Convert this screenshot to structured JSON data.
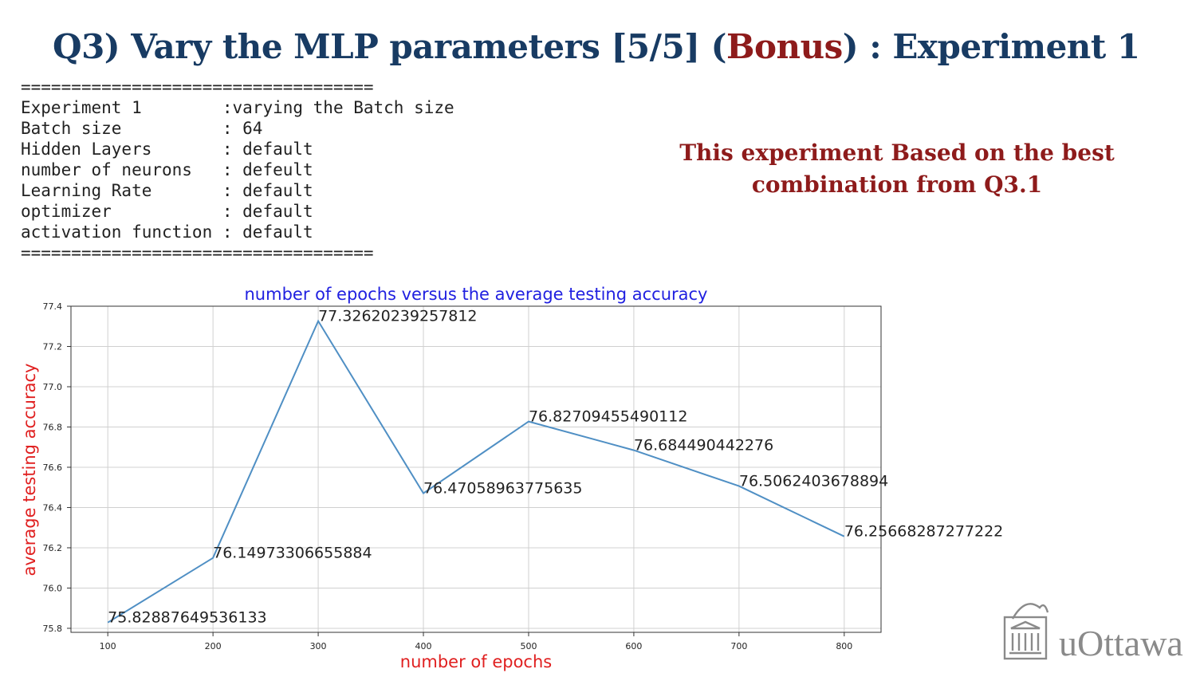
{
  "slide": {
    "title_prefix": "Q3) Vary the MLP parameters [5/5]  (",
    "title_bonus": "Bonus",
    "title_suffix": ") : Experiment 1",
    "note": "This experiment Based on the best combination from Q3.1",
    "logo_text": "uOttawa"
  },
  "console": {
    "separator": "===================================",
    "rows": [
      {
        "key": "Experiment 1        ",
        "value": ":varying the Batch size"
      },
      {
        "key": "Batch size          ",
        "value": ": 64"
      },
      {
        "key": "Hidden Layers       ",
        "value": ": default"
      },
      {
        "key": "number of neurons   ",
        "value": ": defeult"
      },
      {
        "key": "Learning Rate       ",
        "value": ": default"
      },
      {
        "key": "optimizer           ",
        "value": ": default"
      },
      {
        "key": "activation function ",
        "value": ": default"
      }
    ]
  },
  "colors": {
    "title": "#183b63",
    "accent_red": "#8e1b1b",
    "chart_title": "#1f1fe0",
    "axis_label": "#e02020",
    "line": "#4f8fc4",
    "grid": "#d0d0d0"
  },
  "chart_data": {
    "type": "line",
    "title": "number of epochs versus the average testing accuracy",
    "xlabel": "number of epochs",
    "ylabel": "average testing accuracy",
    "x": [
      100,
      200,
      300,
      400,
      500,
      600,
      700,
      800
    ],
    "y": [
      75.82887649536133,
      76.14973306655884,
      77.32620239257812,
      76.47058963775635,
      76.82709455490112,
      76.684490442276,
      76.5062403678894,
      76.25668287277222
    ],
    "point_labels": [
      "75.82887649536133",
      "76.14973306655884",
      "77.32620239257812",
      "76.47058963775635",
      "76.82709455490112",
      "76.684490442276",
      "76.5062403678894",
      "76.25668287277222"
    ],
    "xticks": [
      100,
      200,
      300,
      400,
      500,
      600,
      700,
      800
    ],
    "yticks": [
      "75.8",
      "76.0",
      "76.2",
      "76.4",
      "76.6",
      "76.8",
      "77.0",
      "77.2",
      "77.4"
    ],
    "xlim": [
      65,
      835
    ],
    "ylim": [
      75.78,
      77.4
    ],
    "grid": true
  }
}
